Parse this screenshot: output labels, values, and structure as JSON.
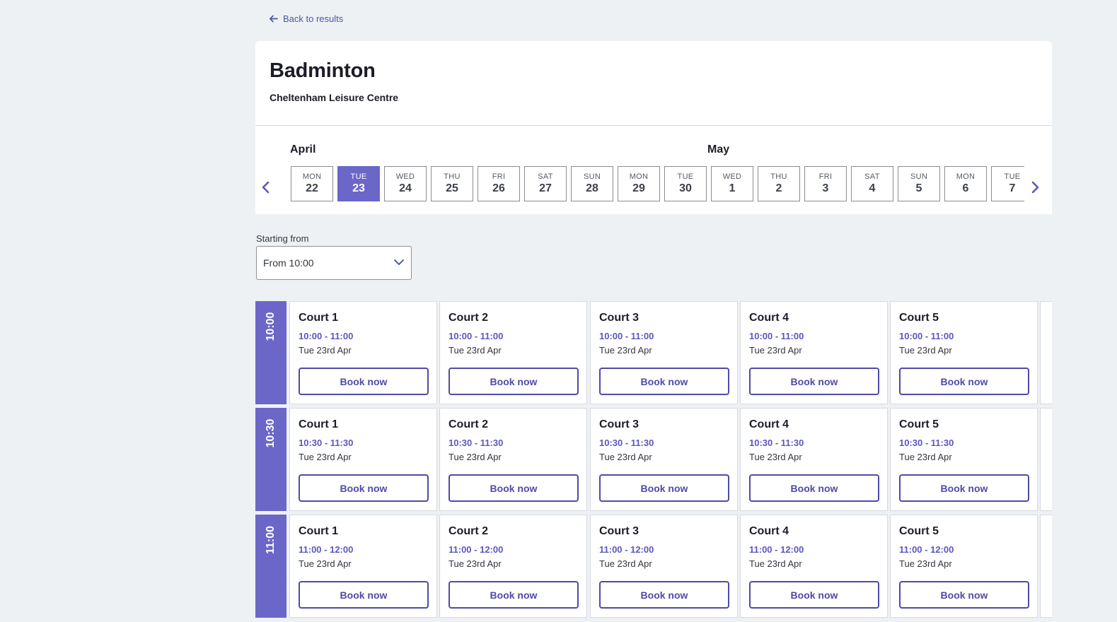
{
  "back_link": {
    "label": "Back to results",
    "icon": "arrow-left-icon"
  },
  "activity": {
    "title": "Badminton",
    "venue": "Cheltenham Leisure Centre"
  },
  "calendar": {
    "months": [
      "April",
      "May"
    ],
    "prev_icon": "chevron-left-icon",
    "next_icon": "chevron-right-icon",
    "dates": [
      {
        "dow": "MON",
        "day": "22"
      },
      {
        "dow": "TUE",
        "day": "23",
        "selected": true
      },
      {
        "dow": "WED",
        "day": "24"
      },
      {
        "dow": "THU",
        "day": "25"
      },
      {
        "dow": "FRI",
        "day": "26"
      },
      {
        "dow": "SAT",
        "day": "27"
      },
      {
        "dow": "SUN",
        "day": "28"
      },
      {
        "dow": "MON",
        "day": "29"
      },
      {
        "dow": "TUE",
        "day": "30"
      },
      {
        "dow": "WED",
        "day": "1"
      },
      {
        "dow": "THU",
        "day": "2"
      },
      {
        "dow": "FRI",
        "day": "3"
      },
      {
        "dow": "SAT",
        "day": "4"
      },
      {
        "dow": "SUN",
        "day": "5"
      },
      {
        "dow": "MON",
        "day": "6"
      },
      {
        "dow": "TUE",
        "day": "7"
      }
    ]
  },
  "filter": {
    "label": "Starting from",
    "selected": "From 10:00",
    "icon": "chevron-down-icon"
  },
  "slots": {
    "book_label": "Book now",
    "date_label": "Tue 23rd Apr",
    "courts": [
      "Court 1",
      "Court 2",
      "Court 3",
      "Court 4",
      "Court 5"
    ],
    "rows": [
      {
        "start": "10:00",
        "range": "10:00 - 11:00"
      },
      {
        "start": "10:30",
        "range": "10:30 - 11:30"
      },
      {
        "start": "11:00",
        "range": "11:00 - 12:00"
      }
    ]
  },
  "colors": {
    "accent": "#6b67c9",
    "link": "#4a56a8",
    "button_border": "#4f4aa8",
    "background": "#eef1f4"
  }
}
